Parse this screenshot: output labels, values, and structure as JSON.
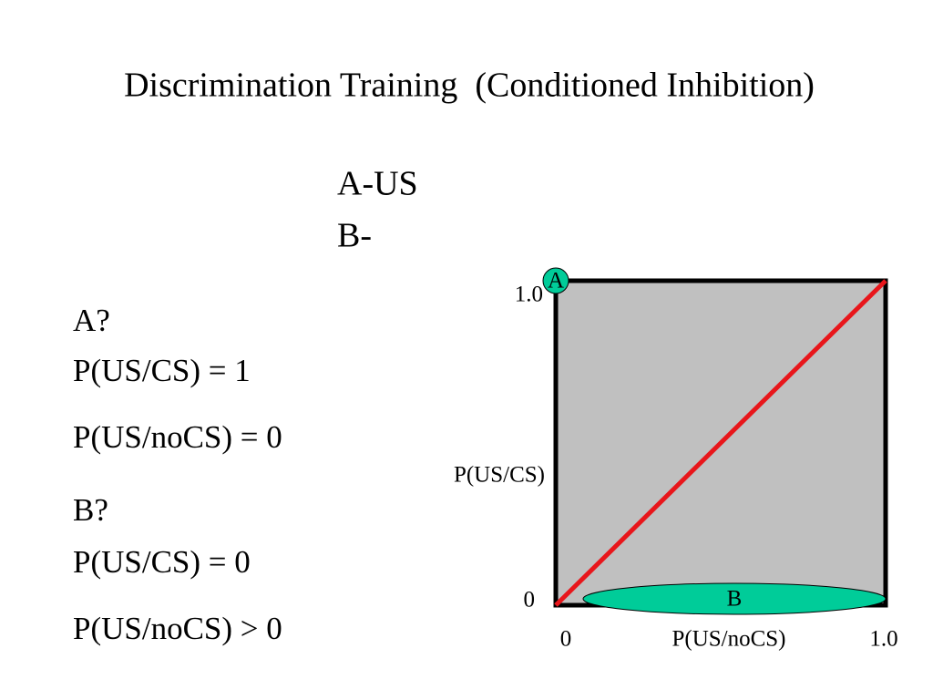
{
  "title": "Discrimination Training  (Conditioned Inhibition)",
  "schedule": [
    "A-US",
    "B-"
  ],
  "questions": [
    {
      "label": "A?",
      "lines": [
        "P(US/CS) = 1",
        "P(US/noCS) = 0"
      ]
    },
    {
      "label": "B?",
      "lines": [
        "P(US/CS) = 0",
        "P(US/noCS) > 0"
      ]
    }
  ],
  "diagram": {
    "y_axis_label": "P(US/CS)",
    "x_axis_label": "P(US/noCS)",
    "y_ticks": [
      "0",
      "1.0"
    ],
    "x_ticks": [
      "0",
      "1.0"
    ],
    "markers": [
      "A",
      "B"
    ]
  }
}
